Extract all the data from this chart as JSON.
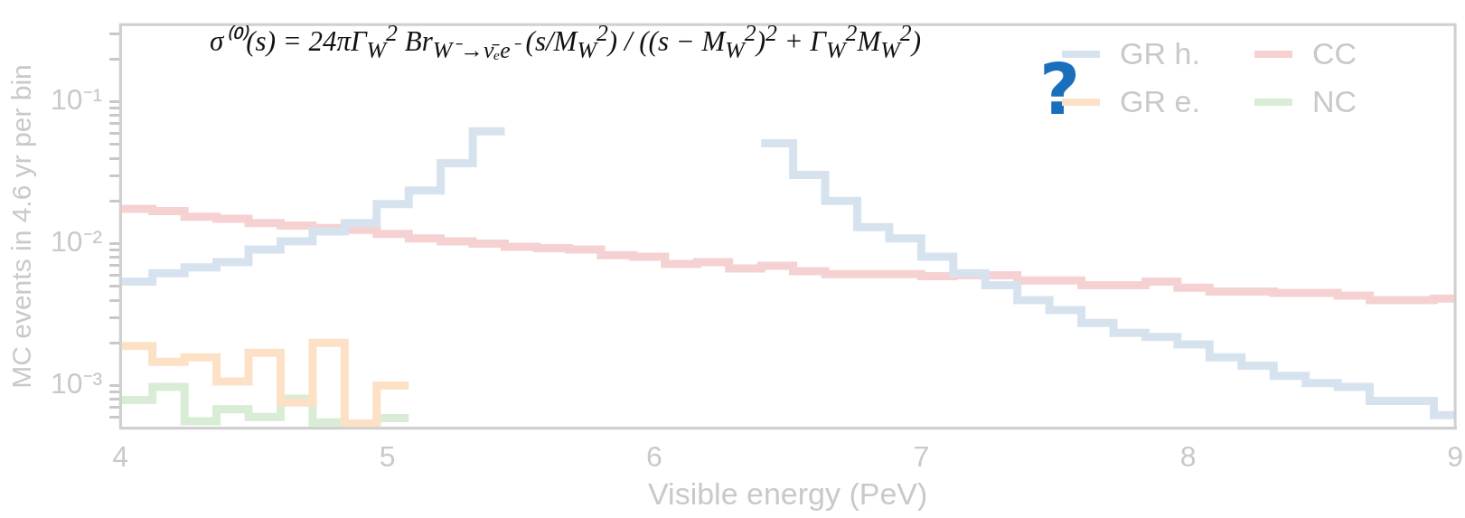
{
  "chart_data": {
    "type": "step",
    "xlabel": "Visible energy (PeV)",
    "ylabel": "MC events in 4.6 yr per bin",
    "annotations": [
      "σ⁽⁰⁾(s) = 24πΓ$_{W}$$^{2}$ Br$_{W⁻→ν̄ₑe⁻}$ (s/M$_{W}$$^{2}$) / ((s − M$_{W}$$^{2}$)$^{2}$ + Γ$_{W}$$^{2}$M$_{W}$$^{2}$)",
      "?"
    ],
    "series": [
      {
        "name": "GR h.",
        "color": "#d6e3ef",
        "x": [
          4,
          4.12,
          4.24,
          4.36,
          4.48,
          4.6,
          4.72,
          4.84,
          4.96,
          5.08,
          5.2,
          5.32,
          5.44,
          5.56,
          6.4,
          6.52,
          6.64,
          6.76,
          6.88,
          7,
          7.12,
          7.24,
          7.36,
          7.48,
          7.6,
          7.72,
          7.84,
          7.96,
          8.08,
          8.2,
          8.32,
          8.44,
          8.56,
          8.68,
          8.8,
          8.92,
          9
        ],
        "values": [
          0.0054,
          0.0062,
          0.0068,
          0.0074,
          0.0091,
          0.0104,
          0.0122,
          0.014,
          0.019,
          0.0237,
          0.037,
          0.062,
          0.062,
          null,
          0.051,
          0.0305,
          0.02,
          0.0131,
          0.0109,
          0.0081,
          0.0062,
          0.0051,
          0.004,
          0.0034,
          0.00276,
          0.00235,
          0.0022,
          0.00195,
          0.00158,
          0.00138,
          0.00117,
          0.00104,
          0.00098,
          0.00078,
          0.00078,
          0.00062,
          0.00062
        ]
      },
      {
        "name": "GR e.",
        "color": "#fde1c6",
        "x": [
          4,
          4.12,
          4.24,
          4.36,
          4.48,
          4.6,
          4.72,
          4.84,
          4.96,
          5.08
        ],
        "values": [
          0.0019,
          0.00147,
          0.00158,
          0.00107,
          0.0017,
          0.00076,
          0.002,
          0.00054,
          0.001,
          0.001
        ]
      },
      {
        "name": "CC",
        "color": "#f6d1d2",
        "x": [
          4,
          4.12,
          4.24,
          4.36,
          4.48,
          4.6,
          4.72,
          4.84,
          4.96,
          5.08,
          5.2,
          5.32,
          5.44,
          5.56,
          5.68,
          5.8,
          5.92,
          6.04,
          6.16,
          6.28,
          6.4,
          6.52,
          6.64,
          6.76,
          6.88,
          7,
          7.12,
          7.24,
          7.36,
          7.48,
          7.6,
          7.72,
          7.84,
          7.96,
          8.08,
          8.2,
          8.32,
          8.44,
          8.56,
          8.68,
          8.8,
          8.92,
          9
        ],
        "values": [
          0.0176,
          0.017,
          0.0155,
          0.015,
          0.014,
          0.0134,
          0.0129,
          0.0125,
          0.0117,
          0.0109,
          0.0104,
          0.01,
          0.0095,
          0.0093,
          0.0091,
          0.0083,
          0.0081,
          0.0072,
          0.0074,
          0.0067,
          0.007,
          0.0064,
          0.0061,
          0.0061,
          0.0061,
          0.0059,
          0.006,
          0.006,
          0.0055,
          0.0055,
          0.0051,
          0.0051,
          0.0054,
          0.0049,
          0.0046,
          0.0046,
          0.0045,
          0.0045,
          0.0043,
          0.004,
          0.004,
          0.0041,
          0.0041
        ]
      },
      {
        "name": "NC",
        "color": "#d9ecd6",
        "x": [
          4,
          4.12,
          4.24,
          4.36,
          4.48,
          4.6,
          4.72,
          4.84,
          4.96,
          5.08
        ],
        "values": [
          0.00079,
          0.00098,
          0.00056,
          0.00068,
          0.0006,
          0.00081,
          0.00055,
          0.00053,
          0.00059,
          0.00059
        ]
      }
    ],
    "xlim": [
      4,
      9
    ],
    "xticks": [
      4,
      5,
      6,
      7,
      8,
      9
    ],
    "ylim": [
      0.0005,
      0.35
    ],
    "yticks": [
      {
        "value": 0.0006,
        "label": null
      },
      {
        "value": 0.0007,
        "label": null
      },
      {
        "value": 0.0008,
        "label": null
      },
      {
        "value": 0.0009,
        "label": null
      },
      {
        "value": 0.001,
        "label": "10⁻³"
      },
      {
        "value": 0.002,
        "label": null
      },
      {
        "value": 0.003,
        "label": null
      },
      {
        "value": 0.004,
        "label": null
      },
      {
        "value": 0.005,
        "label": null
      },
      {
        "value": 0.006,
        "label": null
      },
      {
        "value": 0.007,
        "label": null
      },
      {
        "value": 0.008,
        "label": null
      },
      {
        "value": 0.009,
        "label": null
      },
      {
        "value": 0.01,
        "label": "10⁻²"
      },
      {
        "value": 0.02,
        "label": null
      },
      {
        "value": 0.03,
        "label": null
      },
      {
        "value": 0.04,
        "label": null
      },
      {
        "value": 0.05,
        "label": null
      },
      {
        "value": 0.06,
        "label": null
      },
      {
        "value": 0.07,
        "label": null
      },
      {
        "value": 0.08,
        "label": null
      },
      {
        "value": 0.09,
        "label": null
      },
      {
        "value": 0.1,
        "label": "10⁻¹"
      },
      {
        "value": 0.2,
        "label": null
      },
      {
        "value": 0.3,
        "label": null
      }
    ],
    "log": true,
    "legend": "top right"
  }
}
